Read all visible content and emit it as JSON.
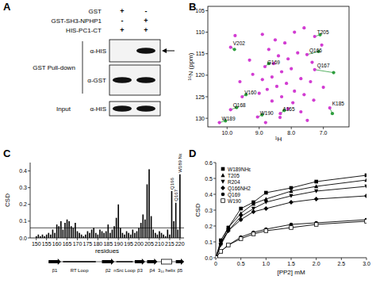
{
  "panel_labels": [
    "A",
    "B",
    "C",
    "D"
  ],
  "blot": {
    "conditions": [
      {
        "label": "GST",
        "lanes": [
          "+",
          "-"
        ]
      },
      {
        "label": "GST-SH3-NPHP1",
        "lanes": [
          "-",
          "+"
        ]
      },
      {
        "label": "HIS-PC1-CT",
        "lanes": [
          "+",
          "+"
        ]
      }
    ],
    "pulldown_label": "GST Pull-down",
    "pulldown_blots": [
      {
        "antibody": "α-HIS",
        "bands": [
          false,
          true
        ]
      },
      {
        "antibody": "α-GST",
        "bands": [
          true,
          true
        ]
      }
    ],
    "input_label": "Input",
    "input_blot": {
      "antibody": "α-HIS",
      "bands": [
        true,
        true
      ]
    }
  },
  "chart_data": [
    {
      "type": "scatter",
      "x_label": "¹H",
      "y_label": "¹⁵N (ppm)",
      "xlim": [
        10.6,
        6.2
      ],
      "ylim": [
        132,
        104
      ],
      "xticks": [
        {
          "value": 10,
          "label": "10.0"
        },
        {
          "value": 9,
          "label": "9.0"
        },
        {
          "value": 8,
          "label": "8.0"
        },
        {
          "value": 7,
          "label": "7.0"
        }
      ],
      "yticks": [
        105,
        110,
        115,
        120,
        125,
        130
      ],
      "series": [
        {
          "color": "#d23cd2",
          "x": [
            7.27,
            7.51,
            7.27,
            9.89,
            8.82,
            9.53,
            9.89,
            6.8,
            8.34,
            10.24,
            9.05,
            8.9,
            8.5,
            8.2,
            7.9,
            7.6,
            8.7,
            8.4,
            8.1,
            7.8,
            8.0,
            8.3,
            8.6,
            8.9,
            9.2,
            7.7,
            7.4,
            8.15,
            8.45,
            8.75,
            9.0,
            7.9,
            7.6,
            8.3,
            8.6,
            7.95,
            7.3,
            8.1,
            7.7,
            9.3,
            9.6,
            8.55,
            7.35,
            7.05,
            7.0,
            9.75,
            8.35,
            7.5,
            8.8
          ],
          "values": [
            111.0,
            115.2,
            118.7,
            113.5,
            118.0,
            125.0,
            128.0,
            127.6,
            128.9,
            131.0,
            129.7,
            110.5,
            111.8,
            112.5,
            110.0,
            109.0,
            114.0,
            115.5,
            116.2,
            114.8,
            118.5,
            119.2,
            120.4,
            121.0,
            119.8,
            120.8,
            121.5,
            121.9,
            122.6,
            123.3,
            124.2,
            123.7,
            124.5,
            125.0,
            126.0,
            126.4,
            125.8,
            127.8,
            128.5,
            116.5,
            121.5,
            117.3,
            117.0,
            113.0,
            122.8,
            110.8,
            129.8,
            130.5,
            131.0
          ],
          "point_labels": [
            "T205",
            "Q166",
            "Q167",
            "V202",
            "G169",
            "V160",
            "Q168",
            "K185",
            "A165",
            "W189",
            "W190",
            null,
            null,
            null,
            null,
            null,
            null,
            null,
            null,
            null,
            null,
            null,
            null,
            null,
            null,
            null,
            null,
            null,
            null,
            null,
            null,
            null,
            null,
            null,
            null,
            null,
            null,
            null,
            null,
            null,
            null,
            null,
            null,
            null,
            null,
            null,
            null,
            null,
            null
          ]
        },
        {
          "color": "#2e9e3e",
          "x": [
            7.1,
            7.15,
            6.68,
            9.77,
            8.7,
            9.41,
            9.7,
            6.72,
            8.22,
            10.05,
            8.91
          ],
          "values": [
            110.6,
            114.5,
            119.4,
            114.0,
            117.3,
            124.5,
            127.5,
            128.9,
            128.2,
            130.6,
            129.2
          ]
        }
      ]
    },
    {
      "type": "bar",
      "x_label": "residues",
      "y_label": "CSD",
      "color": "#000000",
      "xlim": [
        147,
        222
      ],
      "ylim": [
        0,
        0.45
      ],
      "xticks": [
        150,
        155,
        160,
        165,
        170,
        175,
        180,
        185,
        190,
        195,
        200,
        205,
        210,
        215,
        220
      ],
      "yticks": [
        {
          "value": 0,
          "label": "0.0"
        },
        0.1,
        0.2,
        0.3,
        0.4
      ],
      "x": [
        150,
        151,
        152,
        153,
        154,
        155,
        156,
        157,
        158,
        159,
        160,
        161,
        162,
        163,
        164,
        165,
        166,
        167,
        168,
        169,
        170,
        171,
        172,
        173,
        174,
        175,
        176,
        177,
        178,
        179,
        180,
        181,
        182,
        183,
        184,
        185,
        186,
        187,
        188,
        189,
        190,
        191,
        192,
        193,
        194,
        195,
        196,
        197,
        198,
        199,
        200,
        201,
        202,
        203,
        204,
        205,
        206,
        207,
        208,
        209,
        210,
        211,
        212,
        213,
        214,
        215,
        216,
        217,
        218,
        219,
        220
      ],
      "values": [
        0.01,
        0.02,
        0.01,
        0.02,
        0.01,
        0.02,
        0.03,
        0.02,
        0.05,
        0.03,
        0.08,
        0.07,
        0.1,
        0.05,
        0.09,
        0.11,
        0.1,
        0.07,
        0.06,
        0.09,
        0.04,
        0.03,
        0.02,
        0.01,
        0.02,
        0.04,
        0.03,
        0.05,
        0.06,
        0.03,
        0.02,
        0.05,
        0.04,
        0.03,
        0.04,
        0.08,
        0.03,
        0.05,
        0.07,
        0.12,
        0.2,
        0.06,
        0.03,
        0.02,
        0.04,
        0.03,
        0.02,
        0.05,
        0.03,
        0.04,
        0.06,
        0.09,
        0.14,
        0.11,
        0.32,
        0.41,
        0.13,
        0.05,
        0.03,
        0.02,
        0.04,
        0.03,
        0.02,
        0.01,
        0.05,
        0.02,
        0.28,
        0.1,
        0.21,
        0.05,
        0.38
      ],
      "point_labels": [
        null,
        null,
        null,
        null,
        null,
        null,
        null,
        null,
        null,
        null,
        null,
        null,
        null,
        null,
        null,
        null,
        null,
        null,
        null,
        null,
        null,
        null,
        null,
        null,
        null,
        null,
        null,
        null,
        null,
        null,
        null,
        null,
        null,
        null,
        null,
        null,
        null,
        null,
        null,
        null,
        null,
        null,
        null,
        null,
        null,
        null,
        null,
        null,
        null,
        null,
        null,
        null,
        null,
        null,
        null,
        null,
        null,
        null,
        null,
        null,
        null,
        null,
        null,
        null,
        null,
        null,
        "Q166",
        null,
        "Q167",
        null,
        "W189 Nε"
      ],
      "threshold": 0.06,
      "secondary_structure": [
        {
          "label": "β1",
          "kind": "strand",
          "start": 156,
          "end": 162
        },
        {
          "label": "RT Loop",
          "kind": "loop",
          "start": 163,
          "end": 179
        },
        {
          "label": "β2",
          "kind": "strand",
          "start": 182,
          "end": 188
        },
        {
          "label": "nSrc Loop",
          "kind": "loop",
          "start": 189,
          "end": 197
        },
        {
          "label": "β3",
          "kind": "strand",
          "start": 198,
          "end": 203
        },
        {
          "label": "β4",
          "kind": "strand",
          "start": 204,
          "end": 209
        },
        {
          "label": "3₁₀ helix",
          "kind": "helix",
          "start": 211,
          "end": 216
        },
        {
          "label": "β5",
          "kind": "strand",
          "start": 218,
          "end": 222
        }
      ]
    },
    {
      "type": "line",
      "x_label": "[PP2] mM",
      "y_label": "CSD",
      "legend": "upper left",
      "xlim": [
        0,
        3
      ],
      "ylim": [
        0,
        0.6
      ],
      "xticks": [
        0,
        0.5,
        {
          "value": 1,
          "label": "1.0"
        },
        1.5,
        {
          "value": 2,
          "label": "2.0"
        },
        2.5,
        {
          "value": 3,
          "label": "3.0"
        }
      ],
      "yticks": [
        {
          "value": 0,
          "label": "0.0"
        },
        0.1,
        0.2,
        0.3,
        0.4,
        0.5,
        0.6
      ],
      "x": [
        0,
        0.1,
        0.25,
        0.5,
        0.75,
        1.0,
        1.5,
        2.0,
        3.0
      ],
      "series": [
        {
          "name": "W189NHε",
          "color": "#000000",
          "marker": "square",
          "line_style": "solid",
          "values": [
            0,
            0.11,
            0.19,
            0.31,
            0.35,
            0.41,
            0.44,
            0.48,
            0.52
          ]
        },
        {
          "name": "T205",
          "color": "#000000",
          "marker": "triangle",
          "line_style": "solid",
          "values": [
            0,
            0.09,
            0.19,
            0.28,
            0.34,
            0.37,
            0.42,
            0.45,
            0.49
          ]
        },
        {
          "name": "R204",
          "color": "#000000",
          "marker": "triangle-down",
          "line_style": "solid",
          "values": [
            0,
            0.08,
            0.17,
            0.26,
            0.31,
            0.35,
            0.39,
            0.42,
            0.45
          ]
        },
        {
          "name": "Q166NH2",
          "color": "#000000",
          "marker": "diamond",
          "line_style": "solid",
          "values": [
            0,
            0.09,
            0.17,
            0.24,
            0.29,
            0.31,
            0.35,
            0.37,
            0.39
          ]
        },
        {
          "name": "Q169",
          "color": "#000000",
          "marker": "circle",
          "line_style": "solid",
          "values": [
            0,
            0.04,
            0.08,
            0.13,
            0.16,
            0.18,
            0.21,
            0.22,
            0.24
          ]
        },
        {
          "name": "W190",
          "color": "#000000",
          "marker": "square-open",
          "line_style": "solid",
          "values": [
            0,
            0.04,
            0.08,
            0.12,
            0.15,
            0.17,
            0.19,
            0.21,
            0.23
          ]
        }
      ]
    }
  ]
}
